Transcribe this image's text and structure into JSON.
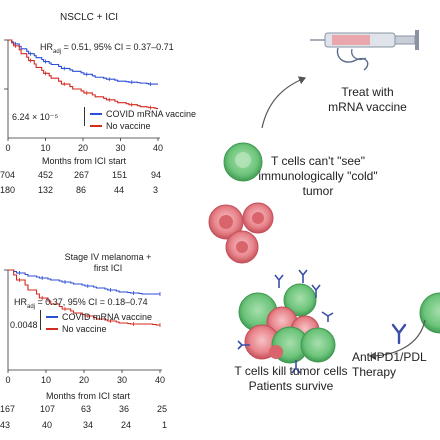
{
  "top_plot": {
    "title": "NSCLC + ICI",
    "hr": {
      "prefix": "HR",
      "sub": "adj",
      "text": " = 0.51, 95% CI = 0.37–0.71"
    },
    "p_value": "6.24 × 10⁻⁵",
    "legend": [
      {
        "label": "COVID mRNA vaccine",
        "color": "#2b4fd6"
      },
      {
        "label": "No vaccine",
        "color": "#d42a20"
      }
    ],
    "x_ticks": [
      "0",
      "10",
      "20",
      "30",
      "40"
    ],
    "xlabel": "Months from ICI start",
    "risk_rows": [
      [
        "704",
        "452",
        "267",
        "151",
        "94"
      ],
      [
        "180",
        "132",
        "86",
        "44",
        "3"
      ]
    ]
  },
  "bottom_plot": {
    "title_line1": "Stage IV melanoma +",
    "title_line2": "first ICI",
    "hr": {
      "prefix": "HR",
      "sub": "adj",
      "text": " = 0.37, 95% CI = 0.18–0.74"
    },
    "p_value": "0.0048",
    "legend": [
      {
        "label": "COVID mRNA vaccine",
        "color": "#2b4fd6"
      },
      {
        "label": "No vaccine",
        "color": "#d42a20"
      }
    ],
    "x_ticks": [
      "0",
      "10",
      "20",
      "30",
      "40"
    ],
    "xlabel": "Months from ICI start",
    "risk_rows": [
      [
        "167",
        "107",
        "63",
        "36",
        "25"
      ],
      [
        "43",
        "40",
        "34",
        "24",
        "1"
      ]
    ]
  },
  "chart_data": [
    {
      "type": "line",
      "title": "NSCLC + ICI",
      "xlabel": "Months from ICI start",
      "ylabel": "",
      "xlim": [
        0,
        40
      ],
      "ylim": [
        0,
        1
      ],
      "series": [
        {
          "name": "COVID mRNA vaccine",
          "color": "#2b4fd6",
          "x": [
            0,
            2,
            4,
            6,
            8,
            10,
            12,
            15,
            18,
            21,
            24,
            27,
            30,
            33,
            36,
            38,
            40
          ],
          "y": [
            1.0,
            0.96,
            0.91,
            0.86,
            0.82,
            0.78,
            0.75,
            0.71,
            0.68,
            0.65,
            0.62,
            0.6,
            0.58,
            0.57,
            0.56,
            0.55,
            0.55
          ]
        },
        {
          "name": "No vaccine",
          "color": "#d42a20",
          "x": [
            0,
            2,
            4,
            6,
            8,
            10,
            12,
            15,
            18,
            21,
            24,
            27,
            30,
            33,
            36,
            38,
            40
          ],
          "y": [
            1.0,
            0.94,
            0.86,
            0.79,
            0.72,
            0.66,
            0.61,
            0.55,
            0.5,
            0.46,
            0.42,
            0.39,
            0.36,
            0.34,
            0.32,
            0.31,
            0.3
          ]
        }
      ]
    },
    {
      "type": "line",
      "title": "Stage IV melanoma + first ICI",
      "xlabel": "Months from ICI start",
      "ylabel": "",
      "xlim": [
        0,
        40
      ],
      "ylim": [
        0,
        1
      ],
      "series": [
        {
          "name": "COVID mRNA vaccine",
          "color": "#2b4fd6",
          "x": [
            0,
            3,
            6,
            9,
            12,
            15,
            18,
            21,
            24,
            27,
            30,
            33,
            36,
            40
          ],
          "y": [
            1.0,
            0.97,
            0.94,
            0.92,
            0.9,
            0.88,
            0.86,
            0.84,
            0.82,
            0.8,
            0.78,
            0.77,
            0.76,
            0.76
          ]
        },
        {
          "name": "No vaccine",
          "color": "#d42a20",
          "x": [
            0,
            3,
            6,
            9,
            12,
            15,
            18,
            21,
            24,
            27,
            30,
            33,
            36,
            40
          ],
          "y": [
            1.0,
            0.9,
            0.8,
            0.72,
            0.66,
            0.61,
            0.57,
            0.54,
            0.51,
            0.49,
            0.47,
            0.46,
            0.46,
            0.45
          ]
        }
      ]
    }
  ],
  "diagram": {
    "treat_label": "Treat with\nmRNA vaccine",
    "cold_label": "T cells can't \"see\"\nimmunologically \"cold\"\ntumor",
    "kill_label": "T cells kill tumor cells\nPatients survive",
    "therapy_label": "Anti-PD1/PDL\nTherapy",
    "colors": {
      "tcell": "#6cc47a",
      "tcell_dark": "#3f9a51",
      "tumor": "#e8848b",
      "tumor_dark": "#c4505a",
      "antibody": "#3b4fa8",
      "arrow": "#555555"
    }
  }
}
